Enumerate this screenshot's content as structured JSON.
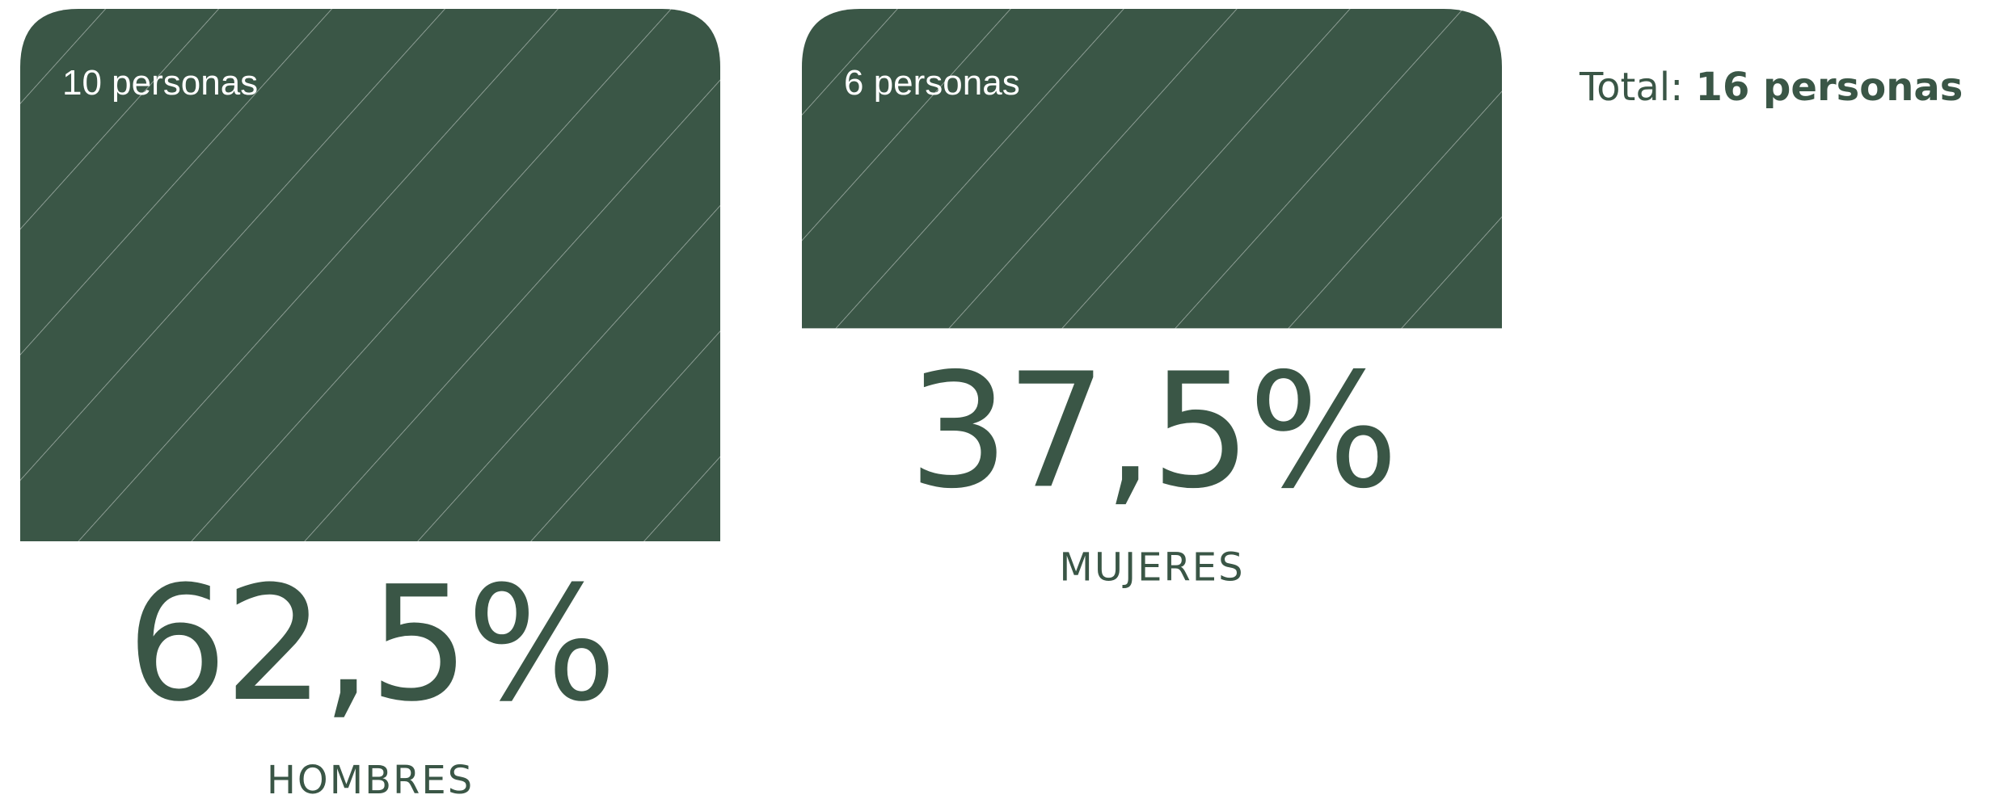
{
  "chart_data": {
    "type": "bar",
    "categories": [
      "HOMBRES",
      "MUJERES"
    ],
    "values": [
      10,
      6
    ],
    "value_labels": [
      "10 personas",
      "6 personas"
    ],
    "percentages": [
      62.5,
      37.5
    ],
    "percentage_labels": [
      "62,5%",
      "37,5%"
    ],
    "total_label": "Total:",
    "total": 16,
    "total_value_label": "16 personas",
    "color": "#3a5646"
  }
}
